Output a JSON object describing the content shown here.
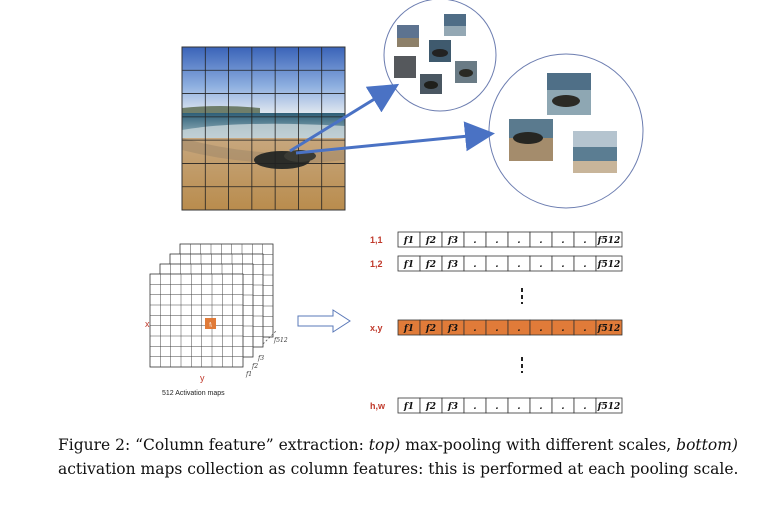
{
  "colors": {
    "accent_red": "#c0392b",
    "highlight_orange": "#e07b39",
    "arrow_blue": "#4a72c4",
    "grid_line": "#333333"
  },
  "icons": {
    "arrow": "hollow-right-arrow-icon"
  },
  "activation": {
    "x_label": "x",
    "y_label": "y",
    "cell_label": "fᵢ",
    "f512": "f512",
    "f3": "f3",
    "f2": "f2",
    "f1": "f1",
    "caption": "512 Activation maps"
  },
  "columns": {
    "rows": [
      {
        "label": "1,1",
        "highlight": false
      },
      {
        "label": "1,2",
        "highlight": false
      },
      {
        "label": "x,y",
        "highlight": true
      },
      {
        "label": "h,w",
        "highlight": false
      }
    ],
    "cells": [
      "f1",
      "f2",
      "f3",
      ".",
      ".",
      ".",
      ".",
      ".",
      ".",
      "f512"
    ]
  },
  "caption": {
    "prefix": "Figure 2: “Column feature” extraction:",
    "top_italic": "top)",
    "top_text": "max-pooling with different scales,",
    "bottom_italic": "bottom)",
    "bottom_text": "activation maps collection as column features: this is performed at each pooling scale."
  }
}
